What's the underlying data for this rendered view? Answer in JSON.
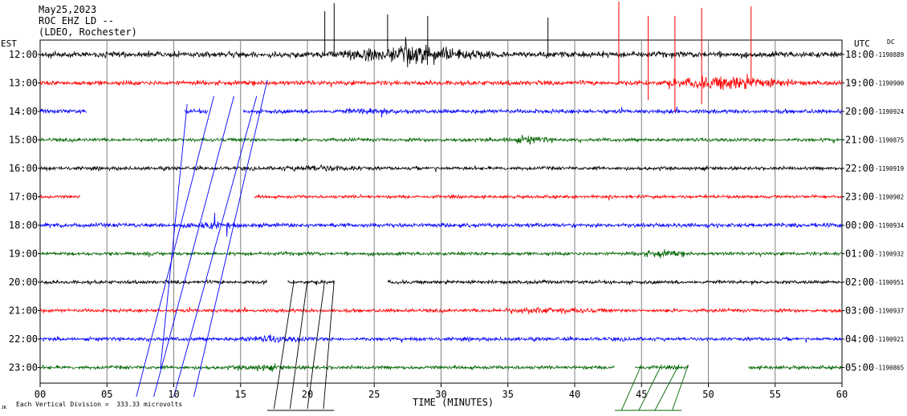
{
  "header": {
    "date": "May25,2023",
    "station": "ROC EHZ LD --",
    "network": "(LDEO, Rochester)"
  },
  "left_axis_label": "EST",
  "right_axis_label": "UTC",
  "dc_label": "DC",
  "footer": {
    "mark": "ᴊᴋ",
    "scale_text": "Each Vertical Division =  333.33 microvolts"
  },
  "colors": {
    "cycle": [
      "#000000",
      "#ff0000",
      "#0000ff",
      "#006400"
    ],
    "grid": "#808080"
  },
  "chart_data": {
    "type": "line",
    "xlabel": "TIME (MINUTES)",
    "ylabel": "",
    "xlim": [
      0,
      60
    ],
    "x_ticks": [
      "00",
      "05",
      "10",
      "15",
      "20",
      "25",
      "30",
      "35",
      "40",
      "45",
      "50",
      "55",
      "60"
    ],
    "rows": [
      {
        "est": "12:00",
        "utc": "18:00",
        "dc": "-1190889",
        "color": "black",
        "amp": 1.0,
        "gaps": []
      },
      {
        "est": "13:00",
        "utc": "19:00",
        "dc": "-1190900",
        "color": "red",
        "amp": 0.8,
        "gaps": []
      },
      {
        "est": "14:00",
        "utc": "20:00",
        "dc": "-1190924",
        "color": "blue",
        "amp": 0.7,
        "gaps": [
          [
            3.5,
            10.8
          ],
          [
            12.6,
            15.2
          ]
        ]
      },
      {
        "est": "15:00",
        "utc": "21:00",
        "dc": "-1190875",
        "color": "green",
        "amp": 0.6,
        "gaps": []
      },
      {
        "est": "16:00",
        "utc": "22:00",
        "dc": "-1190919",
        "color": "black",
        "amp": 0.6,
        "gaps": []
      },
      {
        "est": "17:00",
        "utc": "23:00",
        "dc": "-1190902",
        "color": "red",
        "amp": 0.55,
        "gaps": [
          [
            3.0,
            16.0
          ]
        ]
      },
      {
        "est": "18:00",
        "utc": "00:00",
        "dc": "-1190934",
        "color": "blue",
        "amp": 0.7,
        "gaps": []
      },
      {
        "est": "19:00",
        "utc": "01:00",
        "dc": "-1190932",
        "color": "green",
        "amp": 0.6,
        "gaps": []
      },
      {
        "est": "20:00",
        "utc": "02:00",
        "dc": "-1190951",
        "color": "black",
        "amp": 0.6,
        "gaps": [
          [
            17.0,
            18.5
          ],
          [
            22.0,
            26.0
          ]
        ]
      },
      {
        "est": "21:00",
        "utc": "03:00",
        "dc": "-1190937",
        "color": "red",
        "amp": 0.6,
        "gaps": []
      },
      {
        "est": "22:00",
        "utc": "04:00",
        "dc": "-1190921",
        "color": "blue",
        "amp": 0.6,
        "gaps": []
      },
      {
        "est": "23:00",
        "utc": "05:00",
        "dc": "-1190865",
        "color": "green",
        "amp": 0.6,
        "gaps": [
          [
            43.0,
            44.5
          ],
          [
            48.5,
            53.0
          ]
        ]
      }
    ],
    "events": [
      {
        "row": 0,
        "start": 20.5,
        "end": 35.0,
        "amp": 3.2
      },
      {
        "row": 1,
        "start": 46.0,
        "end": 57.0,
        "amp": 2.8
      },
      {
        "row": 2,
        "start": 22.0,
        "end": 28.0,
        "amp": 1.3
      },
      {
        "row": 3,
        "start": 34.0,
        "end": 39.0,
        "amp": 1.5
      },
      {
        "row": 4,
        "start": 17.0,
        "end": 25.0,
        "amp": 1.3
      },
      {
        "row": 6,
        "start": 10.0,
        "end": 16.0,
        "amp": 1.4
      },
      {
        "row": 7,
        "start": 44.0,
        "end": 49.0,
        "amp": 1.4
      },
      {
        "row": 9,
        "start": 33.0,
        "end": 43.0,
        "amp": 1.3
      },
      {
        "row": 10,
        "start": 14.0,
        "end": 21.0,
        "amp": 1.3
      },
      {
        "row": 11,
        "start": 14.0,
        "end": 19.0,
        "amp": 1.2
      }
    ]
  }
}
